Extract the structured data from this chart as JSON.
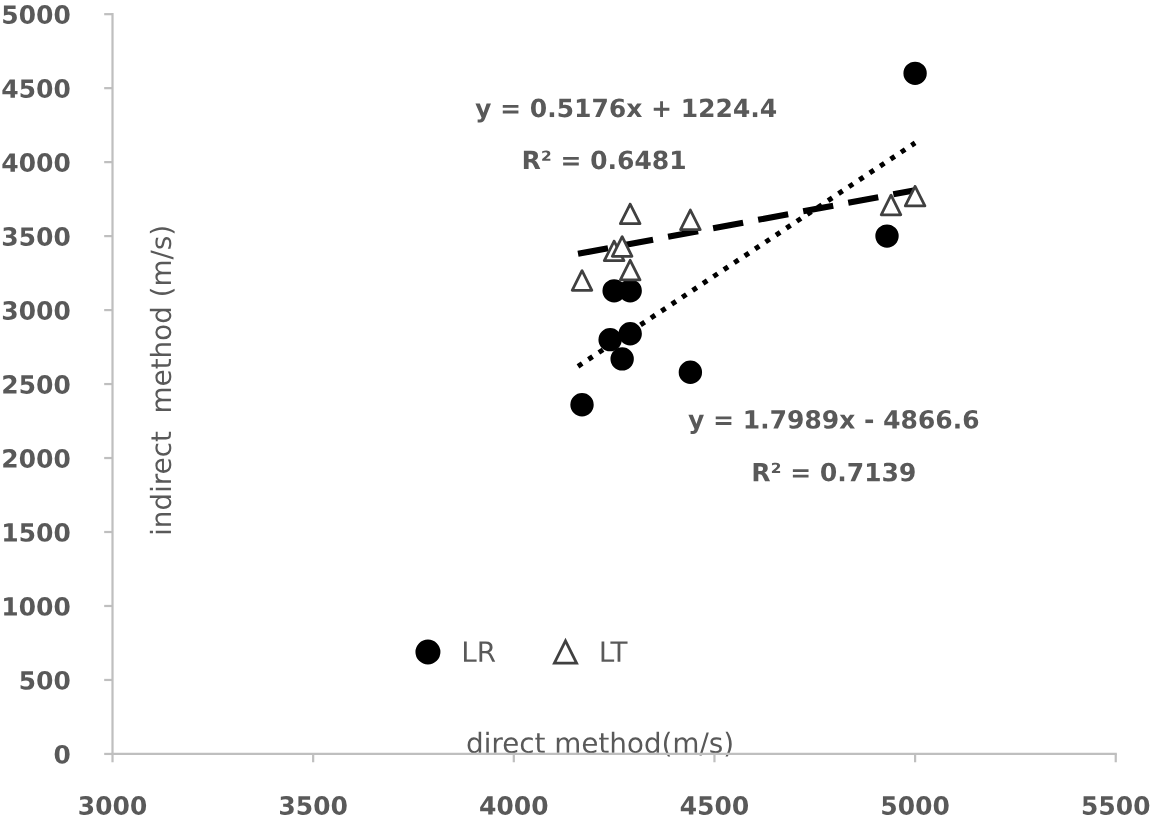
{
  "chart_data": {
    "type": "scatter",
    "xlabel": "direct method(m/s)",
    "ylabel": "indirect  method (m/s)",
    "xlim": [
      3000,
      5500
    ],
    "xticks": [
      3000,
      3500,
      4000,
      4500,
      5000,
      5500
    ],
    "ylim": [
      0,
      5000
    ],
    "yticks": [
      0,
      500,
      1000,
      1500,
      2000,
      2500,
      3000,
      3500,
      4000,
      4500,
      5000
    ],
    "grid": false,
    "legend": "bottom left",
    "series": [
      {
        "name": "LR",
        "color": "#000000",
        "marker": "circle",
        "x": [
          5000,
          4930,
          4250,
          4290,
          4240,
          4290,
          4270,
          4440,
          4170
        ],
        "values": [
          4600,
          3500,
          3130,
          3130,
          2800,
          2840,
          2670,
          2580,
          2360
        ]
      },
      {
        "name": "LT",
        "color": "#404040",
        "marker": "triangle",
        "x": [
          4290,
          4440,
          4250,
          4270,
          4170,
          4290,
          4940,
          5000
        ],
        "values": [
          3650,
          3610,
          3400,
          3430,
          3200,
          3270,
          3710,
          3770
        ]
      },
      {
        "type": "line",
        "color": "#000000",
        "line_style": "dashed",
        "marker": "none",
        "x": [
          4160,
          5000
        ],
        "values": [
          3380,
          3810
        ]
      },
      {
        "type": "line",
        "color": "#000000",
        "line_style": "dotted",
        "marker": "none",
        "x": [
          4160,
          5000
        ],
        "values": [
          2620,
          4130
        ]
      }
    ],
    "annotations": [
      "y = 0.5176x + 1224.4",
      "R² = 0.6481",
      "y = 1.7989x - 4866.6",
      "R² = 0.7139"
    ]
  }
}
